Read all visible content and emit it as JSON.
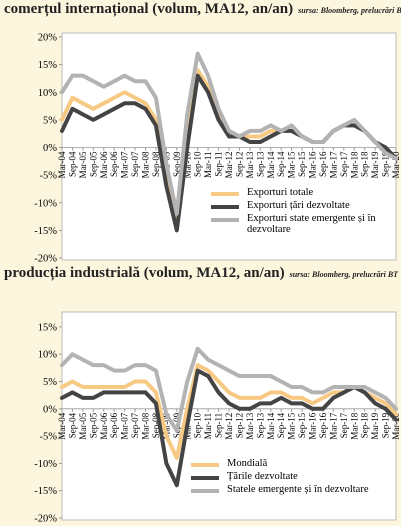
{
  "chart_data": [
    {
      "type": "line",
      "title": "comerțul internațional (volum, MA12, an/an)",
      "source": "sursa: Bloomberg, prelucrări BT",
      "categories": [
        "Mar-04",
        "Sep-04",
        "Mar-05",
        "Sep-05",
        "Mar-06",
        "Sep-06",
        "Mar-07",
        "Sep-07",
        "Mar-08",
        "Sep-08",
        "Mar-09",
        "Sep-09",
        "Mar-10",
        "Sep-10",
        "Mar-11",
        "Sep-11",
        "Mar-12",
        "Sep-12",
        "Mar-13",
        "Sep-13",
        "Mar-14",
        "Sep-14",
        "Mar-15",
        "Sep-15",
        "Mar-16",
        "Sep-16",
        "Mar-17",
        "Sep-17",
        "Mar-18",
        "Sep-18",
        "Mar-19",
        "Sep-19",
        "Mar-20"
      ],
      "series": [
        {
          "name": "Exporturi totale",
          "color": "#f7c983",
          "values": [
            5,
            9,
            8,
            7,
            8,
            9,
            10,
            9,
            8,
            5,
            -5,
            -13,
            2,
            14,
            11,
            6,
            3,
            2,
            2,
            2,
            3,
            3,
            3,
            2,
            1,
            1,
            3,
            4,
            4,
            3,
            1,
            0,
            -2
          ]
        },
        {
          "name": "Exporturi țări dezvoltate",
          "color": "#444444",
          "values": [
            3,
            7,
            6,
            5,
            6,
            7,
            8,
            8,
            7,
            4,
            -7,
            -15,
            0,
            13,
            10,
            5,
            2,
            2,
            1,
            1,
            2,
            3,
            3,
            2,
            1,
            1,
            3,
            4,
            4,
            3,
            1,
            0,
            -2
          ]
        },
        {
          "name": "Exporturi state emergente și în dezvoltare",
          "color": "#b3b3b3",
          "values": [
            10,
            13,
            13,
            12,
            11,
            12,
            13,
            12,
            12,
            9,
            -3,
            -12,
            6,
            17,
            13,
            7,
            3,
            2,
            3,
            3,
            4,
            3,
            4,
            2,
            1,
            1,
            3,
            4,
            5,
            3,
            1,
            -1,
            -2
          ]
        }
      ],
      "ylim": [
        -20,
        20
      ],
      "yticks": [
        {
          "value": -20,
          "label": "-20%"
        },
        {
          "value": -15,
          "label": "-15%"
        },
        {
          "value": -10,
          "label": "-10%"
        },
        {
          "value": -5,
          "label": "-5%"
        },
        {
          "value": 0,
          "label": "0%"
        },
        {
          "value": 5,
          "label": "5%"
        },
        {
          "value": 10,
          "label": "10%"
        },
        {
          "value": 15,
          "label": "15%"
        },
        {
          "value": 20,
          "label": "20%"
        }
      ],
      "grid": false,
      "legend": "bottom-right"
    },
    {
      "type": "line",
      "title": "producția industrială (volum, MA12, an/an)",
      "source": "sursa: Bloomberg, prelucrări BT",
      "categories": [
        "Mar-04",
        "Sep-04",
        "Mar-05",
        "Sep-05",
        "Mar-06",
        "Sep-06",
        "Mar-07",
        "Sep-07",
        "Mar-08",
        "Sep-08",
        "Mar-09",
        "Sep-09",
        "Mar-10",
        "Sep-10",
        "Mar-11",
        "Sep-11",
        "Mar-12",
        "Sep-12",
        "Mar-13",
        "Sep-13",
        "Mar-14",
        "Sep-14",
        "Mar-15",
        "Sep-15",
        "Mar-16",
        "Sep-16",
        "Mar-17",
        "Sep-17",
        "Mar-18",
        "Sep-18",
        "Mar-19",
        "Sep-19",
        "Mar-20"
      ],
      "series": [
        {
          "name": "Mondială",
          "color": "#f7c983",
          "values": [
            4,
            5,
            4,
            4,
            4,
            4,
            4,
            5,
            5,
            3,
            -5,
            -9,
            0,
            8,
            7,
            5,
            3,
            2,
            2,
            2,
            3,
            3,
            2,
            2,
            1,
            2,
            3,
            3,
            4,
            3,
            2,
            1,
            -1
          ]
        },
        {
          "name": "Țările dezvoltate",
          "color": "#444444",
          "values": [
            2,
            3,
            2,
            2,
            3,
            3,
            3,
            3,
            3,
            1,
            -10,
            -14,
            -3,
            7,
            6,
            3,
            1,
            0,
            0,
            1,
            1,
            2,
            1,
            1,
            0,
            0,
            2,
            3,
            4,
            3,
            1,
            0,
            -2
          ]
        },
        {
          "name": "Statele emergente și în dezvoltare",
          "color": "#b3b3b3",
          "values": [
            8,
            10,
            9,
            8,
            8,
            7,
            7,
            8,
            8,
            7,
            -1,
            -4,
            5,
            11,
            9,
            8,
            7,
            6,
            6,
            6,
            6,
            5,
            4,
            4,
            3,
            3,
            4,
            4,
            4,
            4,
            3,
            2,
            0
          ]
        }
      ],
      "ylim": [
        -20,
        17
      ],
      "yticks": [
        {
          "value": -20,
          "label": "-20%"
        },
        {
          "value": -15,
          "label": "-15%"
        },
        {
          "value": -10,
          "label": "-10%"
        },
        {
          "value": -5,
          "label": "-5%"
        },
        {
          "value": 0,
          "label": "0%"
        },
        {
          "value": 5,
          "label": "5%"
        },
        {
          "value": 10,
          "label": "10%"
        },
        {
          "value": 15,
          "label": "15%"
        }
      ],
      "grid": false,
      "legend": "bottom-right"
    }
  ]
}
